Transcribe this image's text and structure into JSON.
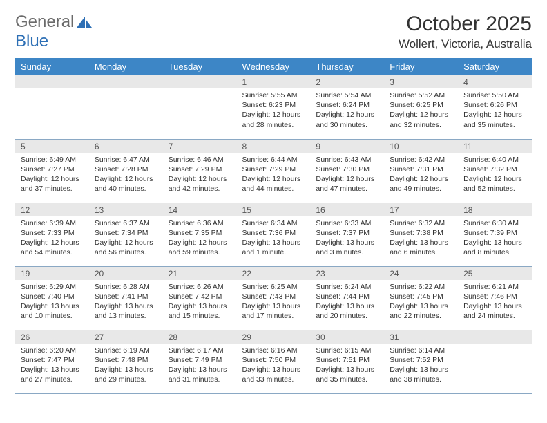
{
  "logo": {
    "word1": "General",
    "word2": "Blue"
  },
  "title": "October 2025",
  "location": "Wollert, Victoria, Australia",
  "colors": {
    "header_bg": "#3d86c6",
    "header_text": "#ffffff",
    "daynum_bg": "#e8e8e8",
    "border": "#8aa8c4",
    "logo_gray": "#6a6a6a",
    "logo_blue": "#2d6fb5"
  },
  "day_headers": [
    "Sunday",
    "Monday",
    "Tuesday",
    "Wednesday",
    "Thursday",
    "Friday",
    "Saturday"
  ],
  "weeks": [
    [
      {
        "n": "",
        "sr": "",
        "ss": "",
        "dl": ""
      },
      {
        "n": "",
        "sr": "",
        "ss": "",
        "dl": ""
      },
      {
        "n": "",
        "sr": "",
        "ss": "",
        "dl": ""
      },
      {
        "n": "1",
        "sr": "5:55 AM",
        "ss": "6:23 PM",
        "dl": "12 hours and 28 minutes."
      },
      {
        "n": "2",
        "sr": "5:54 AM",
        "ss": "6:24 PM",
        "dl": "12 hours and 30 minutes."
      },
      {
        "n": "3",
        "sr": "5:52 AM",
        "ss": "6:25 PM",
        "dl": "12 hours and 32 minutes."
      },
      {
        "n": "4",
        "sr": "5:50 AM",
        "ss": "6:26 PM",
        "dl": "12 hours and 35 minutes."
      }
    ],
    [
      {
        "n": "5",
        "sr": "6:49 AM",
        "ss": "7:27 PM",
        "dl": "12 hours and 37 minutes."
      },
      {
        "n": "6",
        "sr": "6:47 AM",
        "ss": "7:28 PM",
        "dl": "12 hours and 40 minutes."
      },
      {
        "n": "7",
        "sr": "6:46 AM",
        "ss": "7:29 PM",
        "dl": "12 hours and 42 minutes."
      },
      {
        "n": "8",
        "sr": "6:44 AM",
        "ss": "7:29 PM",
        "dl": "12 hours and 44 minutes."
      },
      {
        "n": "9",
        "sr": "6:43 AM",
        "ss": "7:30 PM",
        "dl": "12 hours and 47 minutes."
      },
      {
        "n": "10",
        "sr": "6:42 AM",
        "ss": "7:31 PM",
        "dl": "12 hours and 49 minutes."
      },
      {
        "n": "11",
        "sr": "6:40 AM",
        "ss": "7:32 PM",
        "dl": "12 hours and 52 minutes."
      }
    ],
    [
      {
        "n": "12",
        "sr": "6:39 AM",
        "ss": "7:33 PM",
        "dl": "12 hours and 54 minutes."
      },
      {
        "n": "13",
        "sr": "6:37 AM",
        "ss": "7:34 PM",
        "dl": "12 hours and 56 minutes."
      },
      {
        "n": "14",
        "sr": "6:36 AM",
        "ss": "7:35 PM",
        "dl": "12 hours and 59 minutes."
      },
      {
        "n": "15",
        "sr": "6:34 AM",
        "ss": "7:36 PM",
        "dl": "13 hours and 1 minute."
      },
      {
        "n": "16",
        "sr": "6:33 AM",
        "ss": "7:37 PM",
        "dl": "13 hours and 3 minutes."
      },
      {
        "n": "17",
        "sr": "6:32 AM",
        "ss": "7:38 PM",
        "dl": "13 hours and 6 minutes."
      },
      {
        "n": "18",
        "sr": "6:30 AM",
        "ss": "7:39 PM",
        "dl": "13 hours and 8 minutes."
      }
    ],
    [
      {
        "n": "19",
        "sr": "6:29 AM",
        "ss": "7:40 PM",
        "dl": "13 hours and 10 minutes."
      },
      {
        "n": "20",
        "sr": "6:28 AM",
        "ss": "7:41 PM",
        "dl": "13 hours and 13 minutes."
      },
      {
        "n": "21",
        "sr": "6:26 AM",
        "ss": "7:42 PM",
        "dl": "13 hours and 15 minutes."
      },
      {
        "n": "22",
        "sr": "6:25 AM",
        "ss": "7:43 PM",
        "dl": "13 hours and 17 minutes."
      },
      {
        "n": "23",
        "sr": "6:24 AM",
        "ss": "7:44 PM",
        "dl": "13 hours and 20 minutes."
      },
      {
        "n": "24",
        "sr": "6:22 AM",
        "ss": "7:45 PM",
        "dl": "13 hours and 22 minutes."
      },
      {
        "n": "25",
        "sr": "6:21 AM",
        "ss": "7:46 PM",
        "dl": "13 hours and 24 minutes."
      }
    ],
    [
      {
        "n": "26",
        "sr": "6:20 AM",
        "ss": "7:47 PM",
        "dl": "13 hours and 27 minutes."
      },
      {
        "n": "27",
        "sr": "6:19 AM",
        "ss": "7:48 PM",
        "dl": "13 hours and 29 minutes."
      },
      {
        "n": "28",
        "sr": "6:17 AM",
        "ss": "7:49 PM",
        "dl": "13 hours and 31 minutes."
      },
      {
        "n": "29",
        "sr": "6:16 AM",
        "ss": "7:50 PM",
        "dl": "13 hours and 33 minutes."
      },
      {
        "n": "30",
        "sr": "6:15 AM",
        "ss": "7:51 PM",
        "dl": "13 hours and 35 minutes."
      },
      {
        "n": "31",
        "sr": "6:14 AM",
        "ss": "7:52 PM",
        "dl": "13 hours and 38 minutes."
      },
      {
        "n": "",
        "sr": "",
        "ss": "",
        "dl": ""
      }
    ]
  ],
  "labels": {
    "sunrise": "Sunrise:",
    "sunset": "Sunset:",
    "daylight": "Daylight:"
  }
}
